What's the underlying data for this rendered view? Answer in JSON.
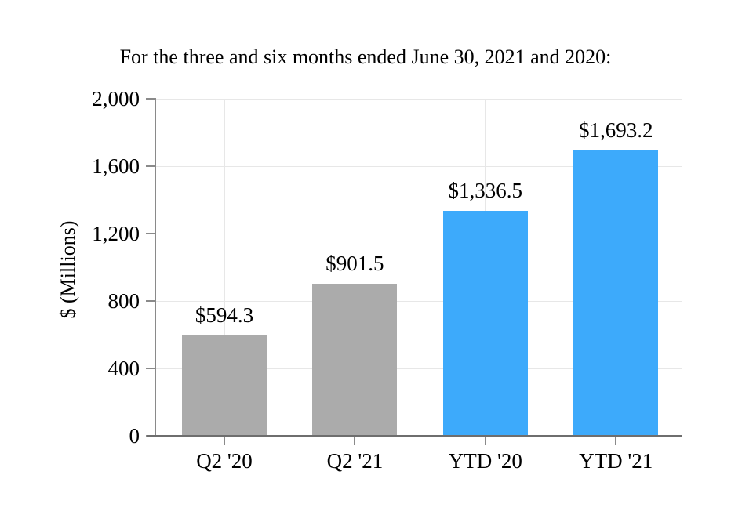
{
  "chart_data": {
    "type": "bar",
    "title": "For the three and six months ended June 30, 2021 and 2020:",
    "ylabel": "$ (Millions)",
    "xlabel": "",
    "categories": [
      "Q2 '20",
      "Q2 '21",
      "YTD '20",
      "YTD '21"
    ],
    "values": [
      594.3,
      901.5,
      1336.5,
      1693.2
    ],
    "value_labels": [
      "$594.3",
      "$901.5",
      "$1,336.5",
      "$1,693.2"
    ],
    "bar_colors": [
      "#ABABAB",
      "#ABABAB",
      "#3DAAFB",
      "#3DAAFB"
    ],
    "ylim": [
      0,
      2000
    ],
    "yticks": [
      0,
      400,
      800,
      1200,
      1600,
      2000
    ],
    "ytick_labels": [
      "0",
      "400",
      "800",
      "1,200",
      "1,600",
      "2,000"
    ],
    "grid": true,
    "legend": "none",
    "colors": {
      "gray_bar": "#ABABAB",
      "blue_bar": "#3DAAFB",
      "gridline": "#E7E7E7",
      "x_axis_line": "#6E6E6E",
      "y_axis_line": "#8A8A8A",
      "tick_mark": "#8A8A8A",
      "text": "#000000",
      "background": "#FFFFFF"
    }
  }
}
